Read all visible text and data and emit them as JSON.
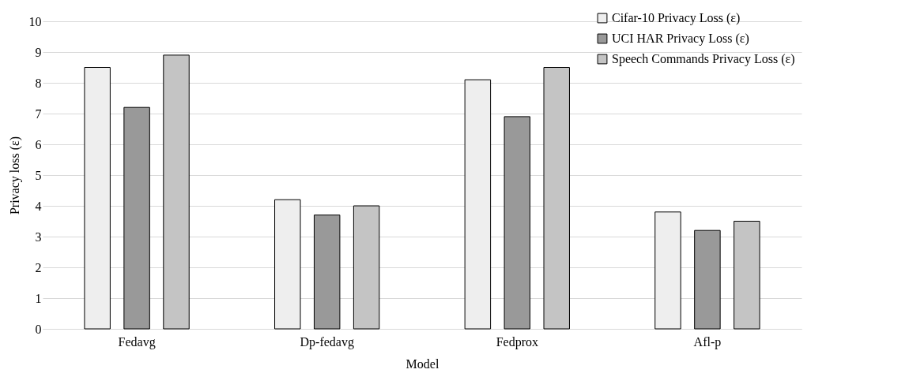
{
  "chart_data": {
    "type": "bar",
    "xlabel": "Model",
    "ylabel": "Privacy loss (ε)",
    "categories": [
      "Fedavg",
      "Dp-fedavg",
      "Fedprox",
      "Afl-p"
    ],
    "series": [
      {
        "name": "Cifar-10 Privacy Loss (ε)",
        "color": "#eeeeee",
        "values": [
          8.5,
          4.2,
          8.1,
          3.8
        ]
      },
      {
        "name": "UCI HAR Privacy Loss (ε)",
        "color": "#999999",
        "values": [
          7.2,
          3.7,
          6.9,
          3.2
        ]
      },
      {
        "name": "Speech Commands Privacy Loss (ε)",
        "color": "#c4c4c4",
        "values": [
          8.9,
          4.0,
          8.5,
          3.5
        ]
      }
    ],
    "ylim": [
      0,
      10
    ],
    "yticks": [
      0,
      1,
      2,
      3,
      4,
      5,
      6,
      7,
      8,
      9,
      10
    ],
    "grid": "y",
    "legend": "top right"
  }
}
